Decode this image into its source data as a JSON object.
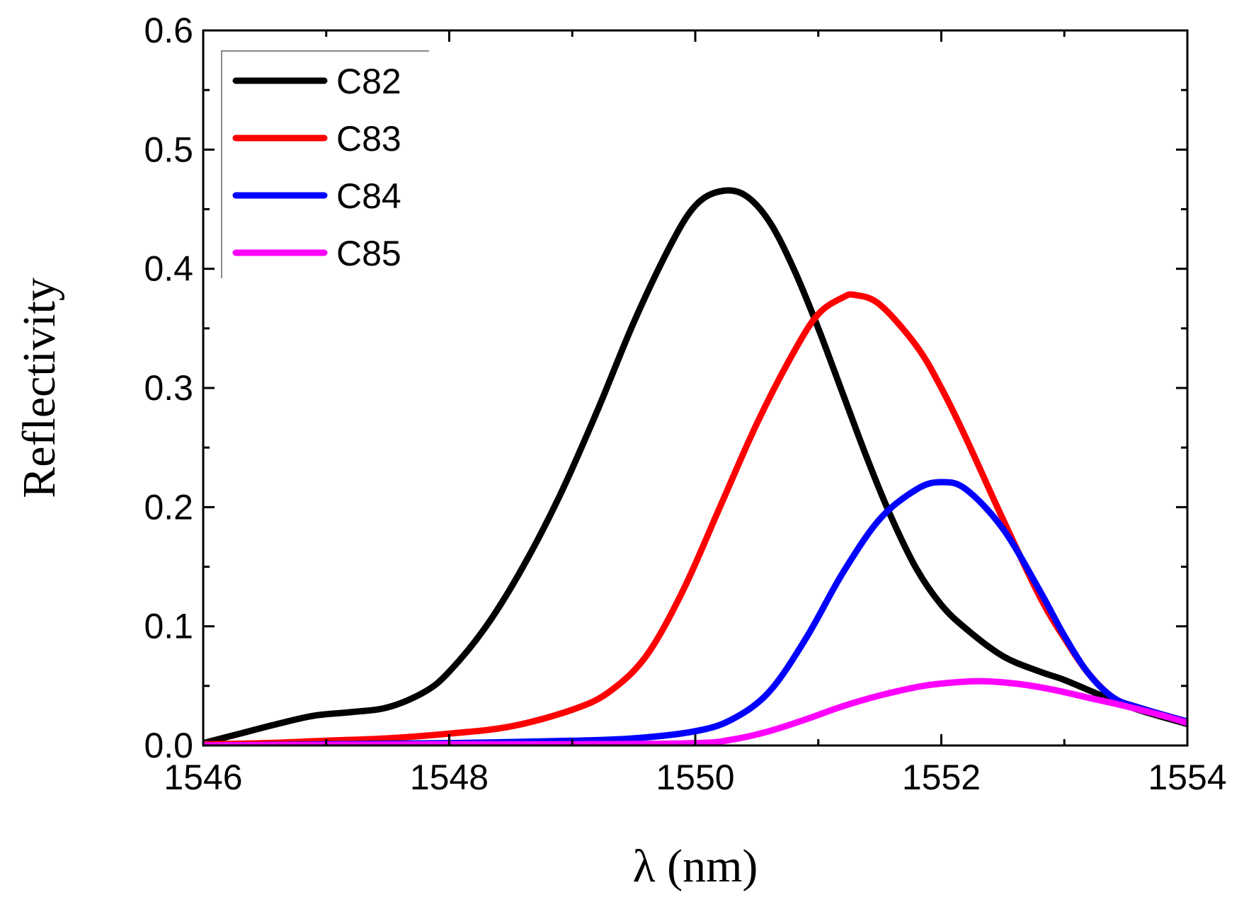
{
  "chart_data": {
    "type": "line",
    "title": "",
    "xlabel": "λ (nm)",
    "ylabel": "Reflectivity",
    "xlim": [
      1546,
      1554
    ],
    "ylim": [
      0.0,
      0.6
    ],
    "x_ticks": [
      "1546",
      "1548",
      "1550",
      "1552",
      "1554"
    ],
    "y_ticks": [
      "0.0",
      "0.1",
      "0.2",
      "0.3",
      "0.4",
      "0.5",
      "0.6"
    ],
    "grid": false,
    "legend_position": "top-left",
    "series": [
      {
        "name": "C82",
        "color": "#000000",
        "points": [
          [
            1546.0,
            0.002
          ],
          [
            1546.3,
            0.01
          ],
          [
            1546.6,
            0.018
          ],
          [
            1546.9,
            0.025
          ],
          [
            1547.2,
            0.028
          ],
          [
            1547.5,
            0.032
          ],
          [
            1547.8,
            0.045
          ],
          [
            1548.0,
            0.062
          ],
          [
            1548.3,
            0.1
          ],
          [
            1548.6,
            0.15
          ],
          [
            1548.9,
            0.21
          ],
          [
            1549.2,
            0.28
          ],
          [
            1549.5,
            0.355
          ],
          [
            1549.8,
            0.42
          ],
          [
            1550.0,
            0.453
          ],
          [
            1550.2,
            0.465
          ],
          [
            1550.4,
            0.462
          ],
          [
            1550.6,
            0.44
          ],
          [
            1550.8,
            0.4
          ],
          [
            1551.0,
            0.35
          ],
          [
            1551.2,
            0.295
          ],
          [
            1551.4,
            0.24
          ],
          [
            1551.6,
            0.19
          ],
          [
            1551.8,
            0.148
          ],
          [
            1552.0,
            0.118
          ],
          [
            1552.2,
            0.098
          ],
          [
            1552.5,
            0.075
          ],
          [
            1552.8,
            0.062
          ],
          [
            1553.0,
            0.055
          ],
          [
            1553.3,
            0.042
          ],
          [
            1553.6,
            0.03
          ],
          [
            1554.0,
            0.018
          ]
        ]
      },
      {
        "name": "C83",
        "color": "#ff0000",
        "points": [
          [
            1546.0,
            0.001
          ],
          [
            1546.5,
            0.002
          ],
          [
            1547.0,
            0.004
          ],
          [
            1547.5,
            0.006
          ],
          [
            1548.0,
            0.01
          ],
          [
            1548.5,
            0.016
          ],
          [
            1549.0,
            0.03
          ],
          [
            1549.3,
            0.045
          ],
          [
            1549.6,
            0.075
          ],
          [
            1549.9,
            0.13
          ],
          [
            1550.2,
            0.2
          ],
          [
            1550.5,
            0.27
          ],
          [
            1550.8,
            0.33
          ],
          [
            1551.0,
            0.362
          ],
          [
            1551.2,
            0.376
          ],
          [
            1551.3,
            0.378
          ],
          [
            1551.5,
            0.37
          ],
          [
            1551.8,
            0.335
          ],
          [
            1552.0,
            0.3
          ],
          [
            1552.2,
            0.258
          ],
          [
            1552.5,
            0.19
          ],
          [
            1552.8,
            0.125
          ],
          [
            1553.0,
            0.09
          ],
          [
            1553.2,
            0.06
          ],
          [
            1553.4,
            0.04
          ],
          [
            1553.6,
            0.032
          ],
          [
            1554.0,
            0.02
          ]
        ]
      },
      {
        "name": "C84",
        "color": "#0000ff",
        "points": [
          [
            1546.0,
            0.0
          ],
          [
            1547.0,
            0.001
          ],
          [
            1548.0,
            0.002
          ],
          [
            1549.0,
            0.004
          ],
          [
            1549.5,
            0.006
          ],
          [
            1550.0,
            0.012
          ],
          [
            1550.3,
            0.022
          ],
          [
            1550.6,
            0.045
          ],
          [
            1550.9,
            0.09
          ],
          [
            1551.2,
            0.145
          ],
          [
            1551.5,
            0.19
          ],
          [
            1551.8,
            0.215
          ],
          [
            1552.0,
            0.221
          ],
          [
            1552.2,
            0.215
          ],
          [
            1552.5,
            0.182
          ],
          [
            1552.8,
            0.13
          ],
          [
            1553.0,
            0.092
          ],
          [
            1553.2,
            0.06
          ],
          [
            1553.4,
            0.04
          ],
          [
            1553.6,
            0.032
          ],
          [
            1554.0,
            0.02
          ]
        ]
      },
      {
        "name": "C85",
        "color": "#ff00ff",
        "points": [
          [
            1546.0,
            0.0
          ],
          [
            1548.0,
            0.001
          ],
          [
            1549.0,
            0.001
          ],
          [
            1550.0,
            0.002
          ],
          [
            1550.3,
            0.005
          ],
          [
            1550.6,
            0.012
          ],
          [
            1550.9,
            0.022
          ],
          [
            1551.2,
            0.033
          ],
          [
            1551.5,
            0.042
          ],
          [
            1551.8,
            0.049
          ],
          [
            1552.0,
            0.052
          ],
          [
            1552.3,
            0.054
          ],
          [
            1552.6,
            0.052
          ],
          [
            1552.9,
            0.047
          ],
          [
            1553.2,
            0.04
          ],
          [
            1553.5,
            0.033
          ],
          [
            1553.8,
            0.025
          ],
          [
            1554.0,
            0.019
          ]
        ]
      }
    ]
  }
}
